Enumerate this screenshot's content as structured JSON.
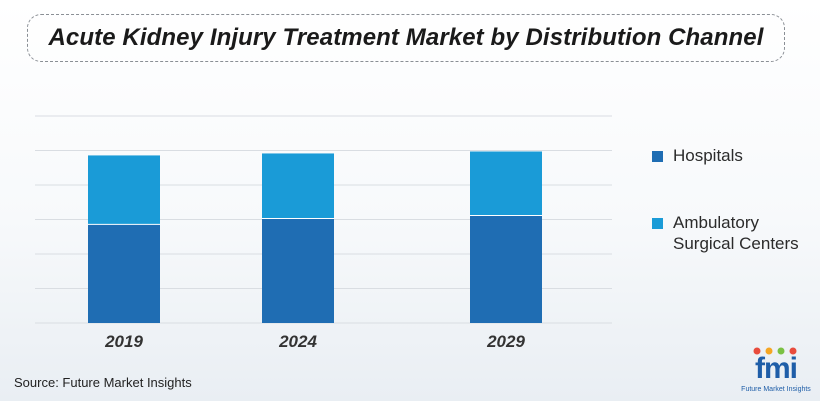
{
  "title": "Acute Kidney Injury Treatment Market by Distribution Channel",
  "source": "Source: Future Market Insights",
  "logo": {
    "text": "fmi",
    "subtitle": "Future Market Insights"
  },
  "colors": {
    "hospitals": "#1f6db3",
    "ambulatory": "#1a9bd7",
    "grid": "#d9dde2",
    "axis_label": "#333333"
  },
  "chart_data": {
    "type": "bar",
    "stacked": true,
    "categories": [
      "2019",
      "2024",
      "2029"
    ],
    "series": [
      {
        "name": "Hospitals",
        "color": "#1f6db3",
        "values": [
          100,
          106,
          109
        ]
      },
      {
        "name": "Ambulatory Surgical Centers",
        "color": "#1a9bd7",
        "values": [
          70,
          66,
          65
        ]
      }
    ],
    "ylim": [
      0,
      210
    ],
    "grid": true,
    "legend": "right",
    "xlabel": "",
    "ylabel": ""
  },
  "legend": [
    {
      "label": "Hospitals",
      "color": "#1f6db3"
    },
    {
      "label": "Ambulatory\nSurgical Centers",
      "color": "#1a9bd7"
    }
  ]
}
